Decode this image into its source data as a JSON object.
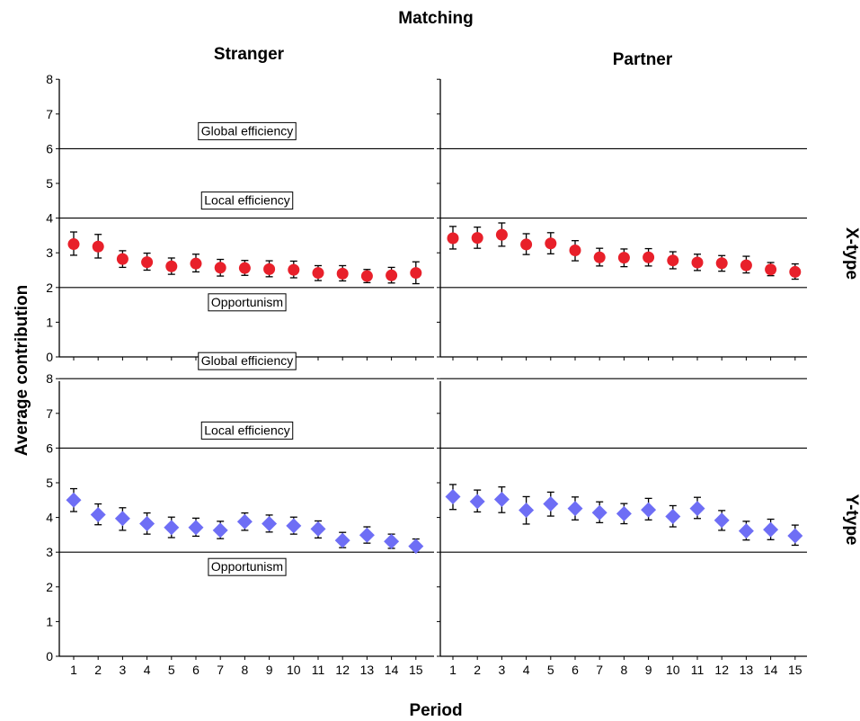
{
  "chart_data": {
    "type": "scatter",
    "title": "Matching",
    "xlabel": "Period",
    "ylabel": "Average contribution",
    "columns": [
      "Stranger",
      "Partner"
    ],
    "rows": [
      "X-type",
      "Y-type"
    ],
    "x": [
      1,
      2,
      3,
      4,
      5,
      6,
      7,
      8,
      9,
      10,
      11,
      12,
      13,
      14,
      15
    ],
    "ylim": [
      0,
      8
    ],
    "yticks": [
      0,
      1,
      2,
      3,
      4,
      5,
      6,
      7,
      8
    ],
    "colors": {
      "X-type": "#e8202a",
      "Y-type": "#6e6ef5"
    },
    "markers": {
      "X-type": "circle",
      "Y-type": "diamond"
    },
    "reference_lines": {
      "X-type": [
        {
          "label": "Global efficiency",
          "value": 6
        },
        {
          "label": "Local efficiency",
          "value": 4
        },
        {
          "label": "Opportunism",
          "value": 2
        }
      ],
      "Y-type": [
        {
          "label": "Global efficiency",
          "value": 8
        },
        {
          "label": "Local efficiency",
          "value": 6
        },
        {
          "label": "Opportunism",
          "value": 3
        }
      ]
    },
    "panels": [
      {
        "matching": "Stranger",
        "type": "X-type",
        "mean": [
          3.25,
          3.18,
          2.82,
          2.73,
          2.61,
          2.69,
          2.57,
          2.56,
          2.53,
          2.51,
          2.42,
          2.4,
          2.33,
          2.35,
          2.42
        ],
        "lower": [
          2.93,
          2.85,
          2.58,
          2.5,
          2.38,
          2.45,
          2.33,
          2.35,
          2.31,
          2.28,
          2.2,
          2.19,
          2.14,
          2.13,
          2.11
        ],
        "upper": [
          3.6,
          3.53,
          3.06,
          2.99,
          2.85,
          2.96,
          2.81,
          2.78,
          2.77,
          2.76,
          2.63,
          2.63,
          2.52,
          2.58,
          2.74
        ]
      },
      {
        "matching": "Partner",
        "type": "X-type",
        "mean": [
          3.42,
          3.43,
          3.52,
          3.24,
          3.27,
          3.07,
          2.87,
          2.86,
          2.87,
          2.78,
          2.72,
          2.7,
          2.64,
          2.52,
          2.45
        ],
        "lower": [
          3.11,
          3.13,
          3.19,
          2.95,
          2.97,
          2.77,
          2.62,
          2.6,
          2.62,
          2.54,
          2.49,
          2.47,
          2.42,
          2.34,
          2.24
        ],
        "upper": [
          3.76,
          3.74,
          3.86,
          3.55,
          3.58,
          3.35,
          3.13,
          3.11,
          3.12,
          3.03,
          2.96,
          2.92,
          2.9,
          2.72,
          2.68
        ]
      },
      {
        "matching": "Stranger",
        "type": "Y-type",
        "mean": [
          4.5,
          4.08,
          3.97,
          3.82,
          3.71,
          3.71,
          3.63,
          3.88,
          3.82,
          3.76,
          3.67,
          3.34,
          3.49,
          3.31,
          3.17
        ],
        "lower": [
          4.17,
          3.79,
          3.63,
          3.52,
          3.42,
          3.46,
          3.39,
          3.63,
          3.58,
          3.52,
          3.41,
          3.13,
          3.26,
          3.11,
          3.0
        ],
        "upper": [
          4.83,
          4.39,
          4.28,
          4.13,
          4.01,
          3.98,
          3.89,
          4.13,
          4.07,
          4.01,
          3.9,
          3.57,
          3.73,
          3.52,
          3.38
        ]
      },
      {
        "matching": "Partner",
        "type": "Y-type",
        "mean": [
          4.6,
          4.46,
          4.52,
          4.21,
          4.39,
          4.26,
          4.14,
          4.11,
          4.22,
          4.03,
          4.26,
          3.92,
          3.61,
          3.65,
          3.47
        ],
        "lower": [
          4.23,
          4.16,
          4.14,
          3.81,
          4.04,
          3.93,
          3.85,
          3.82,
          3.93,
          3.73,
          3.97,
          3.63,
          3.35,
          3.36,
          3.2
        ],
        "upper": [
          4.95,
          4.79,
          4.88,
          4.6,
          4.73,
          4.59,
          4.45,
          4.4,
          4.55,
          4.34,
          4.58,
          4.2,
          3.89,
          3.95,
          3.78
        ]
      }
    ]
  }
}
